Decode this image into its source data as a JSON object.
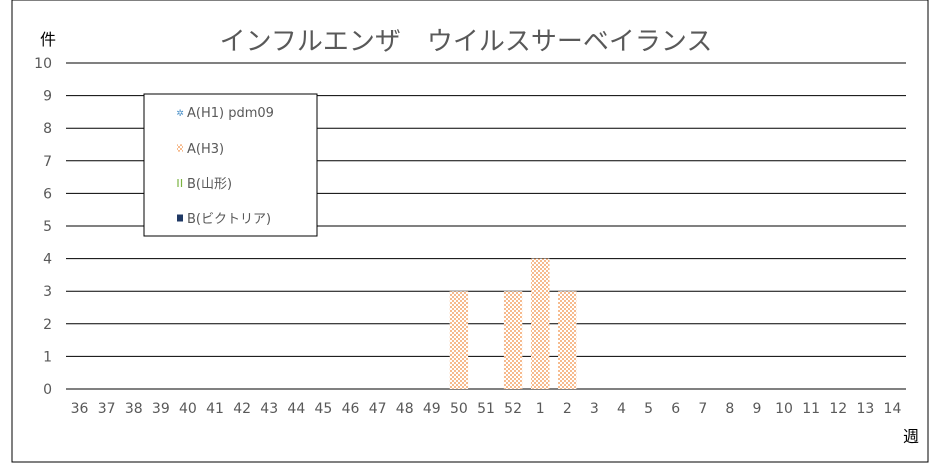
{
  "chart_data": {
    "type": "bar",
    "title": "インフルエンザ　ウイルスサーベイランス",
    "ylabel": "件",
    "xlabel": "週",
    "ylim": [
      0,
      10
    ],
    "yticks": [
      "0",
      "1",
      "2",
      "3",
      "4",
      "5",
      "6",
      "7",
      "8",
      "9",
      "10"
    ],
    "categories": [
      "36",
      "37",
      "38",
      "39",
      "40",
      "41",
      "42",
      "43",
      "44",
      "45",
      "46",
      "47",
      "48",
      "49",
      "50",
      "51",
      "52",
      "1",
      "2",
      "3",
      "4",
      "5",
      "6",
      "7",
      "8",
      "9",
      "10",
      "11",
      "12",
      "13",
      "14"
    ],
    "series": [
      {
        "name": "A(H1) pdm09",
        "color": "#4a90c8",
        "values": [
          0,
          0,
          0,
          0,
          0,
          0,
          0,
          0,
          0,
          0,
          0,
          0,
          0,
          0,
          0,
          0,
          0,
          0,
          0,
          0,
          0,
          0,
          0,
          0,
          0,
          0,
          0,
          0,
          0,
          0,
          0
        ]
      },
      {
        "name": "A(H3)",
        "color": "#f08a3c",
        "values": [
          0,
          0,
          0,
          0,
          0,
          0,
          0,
          0,
          0,
          0,
          0,
          0,
          0,
          0,
          3,
          0,
          3,
          4,
          3,
          0,
          0,
          0,
          0,
          0,
          0,
          0,
          0,
          0,
          0,
          0,
          0
        ]
      },
      {
        "name": "B(山形)",
        "color": "#7cb342",
        "values": [
          0,
          0,
          0,
          0,
          0,
          0,
          0,
          0,
          0,
          0,
          0,
          0,
          0,
          0,
          0,
          0,
          0,
          0,
          0,
          0,
          0,
          0,
          0,
          0,
          0,
          0,
          0,
          0,
          0,
          0,
          0
        ]
      },
      {
        "name": "B(ビクトリア)",
        "color": "#1f3864",
        "values": [
          0,
          0,
          0,
          0,
          0,
          0,
          0,
          0,
          0,
          0,
          0,
          0,
          0,
          0,
          0,
          0,
          0,
          0,
          0,
          0,
          0,
          0,
          0,
          0,
          0,
          0,
          0,
          0,
          0,
          0,
          0
        ]
      }
    ],
    "grid": true,
    "legend": "top-left",
    "stacked": true
  }
}
